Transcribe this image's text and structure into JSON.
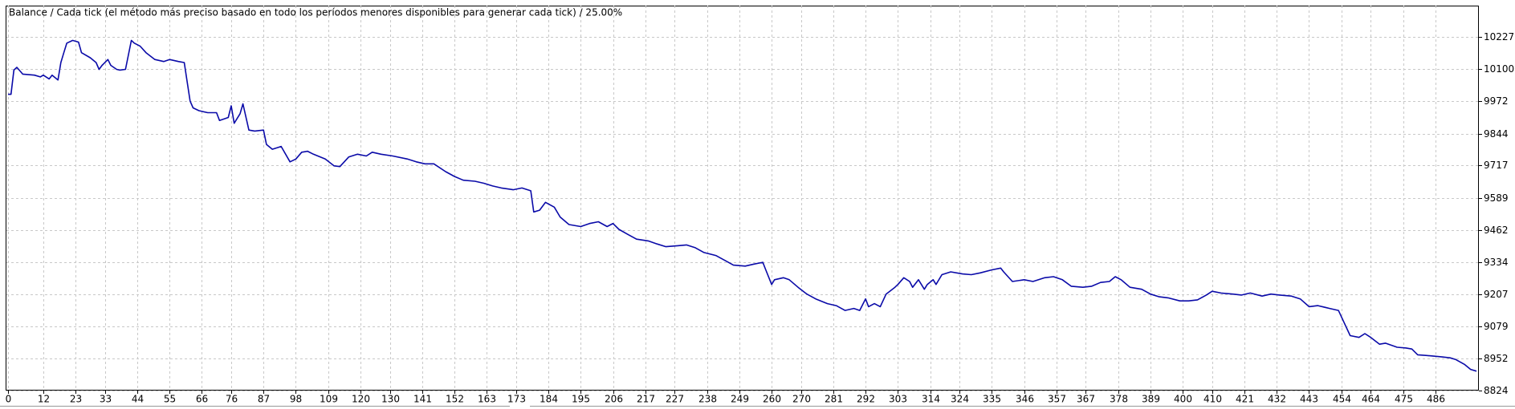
{
  "chart_data": {
    "type": "line",
    "title": "Balance / Cada tick (el método más preciso basado en todo los períodos menores disponibles para generar cada tick)  / 25.00%",
    "color": "#0a0aa8",
    "grid": true,
    "xlim": [
      0,
      500
    ],
    "ylim": [
      8824,
      10352
    ],
    "xticks": [
      0,
      12,
      23,
      33,
      44,
      55,
      66,
      76,
      87,
      98,
      109,
      120,
      130,
      141,
      152,
      163,
      173,
      184,
      195,
      206,
      217,
      227,
      238,
      249,
      260,
      270,
      281,
      292,
      303,
      314,
      324,
      335,
      346,
      357,
      367,
      378,
      389,
      400,
      410,
      421,
      432,
      443,
      454,
      464,
      475,
      486
    ],
    "yticks": [
      8824,
      8952,
      9079,
      9207,
      9334,
      9462,
      9589,
      9717,
      9844,
      9972,
      10100,
      10227
    ],
    "x": [
      0,
      1,
      2,
      3,
      5,
      9,
      11,
      12,
      14,
      15,
      17,
      18,
      19,
      20,
      22,
      24,
      25,
      28,
      30,
      31,
      32,
      34,
      35,
      37,
      38,
      40,
      42,
      43,
      45,
      47,
      50,
      53,
      55,
      58,
      60,
      61,
      62,
      63,
      65,
      68,
      71,
      72,
      75,
      76,
      77,
      79,
      80,
      82,
      84,
      87,
      88,
      90,
      93,
      96,
      98,
      100,
      102,
      104,
      108,
      111,
      113,
      116,
      119,
      122,
      124,
      127,
      131,
      136,
      139,
      142,
      145,
      149,
      152,
      155,
      159,
      162,
      165,
      168,
      172,
      175,
      178,
      179,
      181,
      183,
      186,
      188,
      191,
      195,
      198,
      201,
      204,
      206,
      208,
      211,
      214,
      218,
      221,
      224,
      228,
      231,
      234,
      237,
      241,
      244,
      247,
      251,
      254,
      257,
      258,
      260,
      261,
      264,
      266,
      269,
      272,
      275,
      279,
      282,
      285,
      288,
      290,
      292,
      293,
      295,
      297,
      299,
      302,
      303,
      305,
      307,
      308,
      310,
      312,
      313,
      315,
      316,
      318,
      321,
      325,
      328,
      331,
      335,
      338,
      339,
      342,
      346,
      349,
      353,
      356,
      359,
      362,
      366,
      369,
      372,
      375,
      377,
      379,
      382,
      386,
      389,
      392,
      395,
      399,
      402,
      405,
      408,
      410,
      413,
      417,
      420,
      423,
      427,
      430,
      433,
      437,
      440,
      443,
      446,
      450,
      453,
      455,
      457,
      460,
      462,
      464,
      467,
      469,
      473,
      476,
      478,
      480,
      484,
      488,
      491,
      493,
      496,
      498,
      500
    ],
    "values": [
      10000,
      10000,
      10096,
      10107,
      10080,
      10076,
      10069,
      10076,
      10061,
      10076,
      10057,
      10126,
      10165,
      10203,
      10214,
      10207,
      10165,
      10145,
      10126,
      10099,
      10115,
      10138,
      10115,
      10099,
      10096,
      10099,
      10214,
      10203,
      10191,
      10165,
      10138,
      10130,
      10138,
      10130,
      10126,
      10050,
      9973,
      9946,
      9935,
      9927,
      9927,
      9896,
      9908,
      9954,
      9885,
      9923,
      9962,
      9858,
      9854,
      9858,
      9801,
      9782,
      9793,
      9732,
      9743,
      9770,
      9774,
      9762,
      9743,
      9716,
      9713,
      9751,
      9762,
      9755,
      9770,
      9762,
      9755,
      9743,
      9732,
      9724,
      9724,
      9693,
      9674,
      9659,
      9655,
      9647,
      9636,
      9628,
      9621,
      9628,
      9617,
      9533,
      9540,
      9571,
      9552,
      9513,
      9483,
      9475,
      9487,
      9494,
      9475,
      9487,
      9464,
      9444,
      9425,
      9418,
      9406,
      9395,
      9399,
      9402,
      9391,
      9372,
      9360,
      9341,
      9322,
      9318,
      9326,
      9333,
      9303,
      9245,
      9264,
      9272,
      9264,
      9234,
      9207,
      9188,
      9169,
      9161,
      9142,
      9150,
      9142,
      9188,
      9157,
      9169,
      9157,
      9207,
      9234,
      9245,
      9272,
      9257,
      9234,
      9264,
      9226,
      9245,
      9264,
      9245,
      9284,
      9295,
      9287,
      9284,
      9291,
      9303,
      9310,
      9295,
      9257,
      9264,
      9257,
      9272,
      9276,
      9264,
      9238,
      9234,
      9238,
      9253,
      9257,
      9276,
      9264,
      9234,
      9226,
      9207,
      9196,
      9192,
      9180,
      9180,
      9184,
      9203,
      9218,
      9211,
      9207,
      9203,
      9211,
      9199,
      9207,
      9203,
      9199,
      9188,
      9157,
      9161,
      9150,
      9142,
      9092,
      9042,
      9035,
      9050,
      9035,
      9008,
      9012,
      8996,
      8993,
      8989,
      8966,
      8962,
      8958,
      8954,
      8947,
      8927,
      8908,
      8901
    ]
  }
}
